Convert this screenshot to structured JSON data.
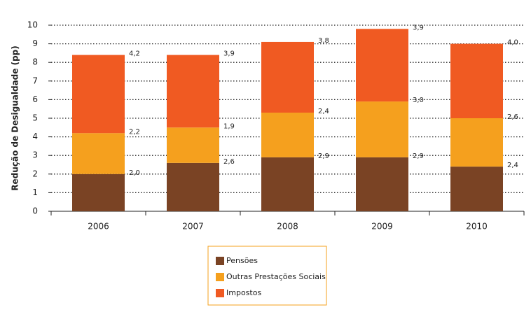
{
  "chart_data": {
    "type": "stacked-bar",
    "y_label": "Redução de Desigualdade (pp)",
    "categories": [
      "2006",
      "2007",
      "2008",
      "2009",
      "2010"
    ],
    "series": [
      {
        "name": "Pensões",
        "color": "#7a4324",
        "values": [
          2.0,
          2.6,
          2.9,
          2.9,
          2.4
        ],
        "value_labels": [
          "2,0",
          "2,6",
          "2,9",
          "2,9",
          "2,4"
        ]
      },
      {
        "name": "Outras Prestações Sociais",
        "color": "#f5a01e",
        "values": [
          2.2,
          1.9,
          2.4,
          3.0,
          2.6
        ],
        "value_labels": [
          "2,2",
          "1,9",
          "2,4",
          "3,0",
          "2,6"
        ]
      },
      {
        "name": "Impostos",
        "color": "#f05a22",
        "values": [
          4.2,
          3.9,
          3.8,
          3.9,
          4.0
        ],
        "value_labels": [
          "4,2",
          "3,9",
          "3,8",
          "3,9",
          "4,0"
        ]
      }
    ],
    "ylim": [
      0,
      10
    ],
    "yticks": [
      0,
      1,
      2,
      3,
      4,
      5,
      6,
      7,
      8,
      9,
      10
    ],
    "grid": true
  }
}
